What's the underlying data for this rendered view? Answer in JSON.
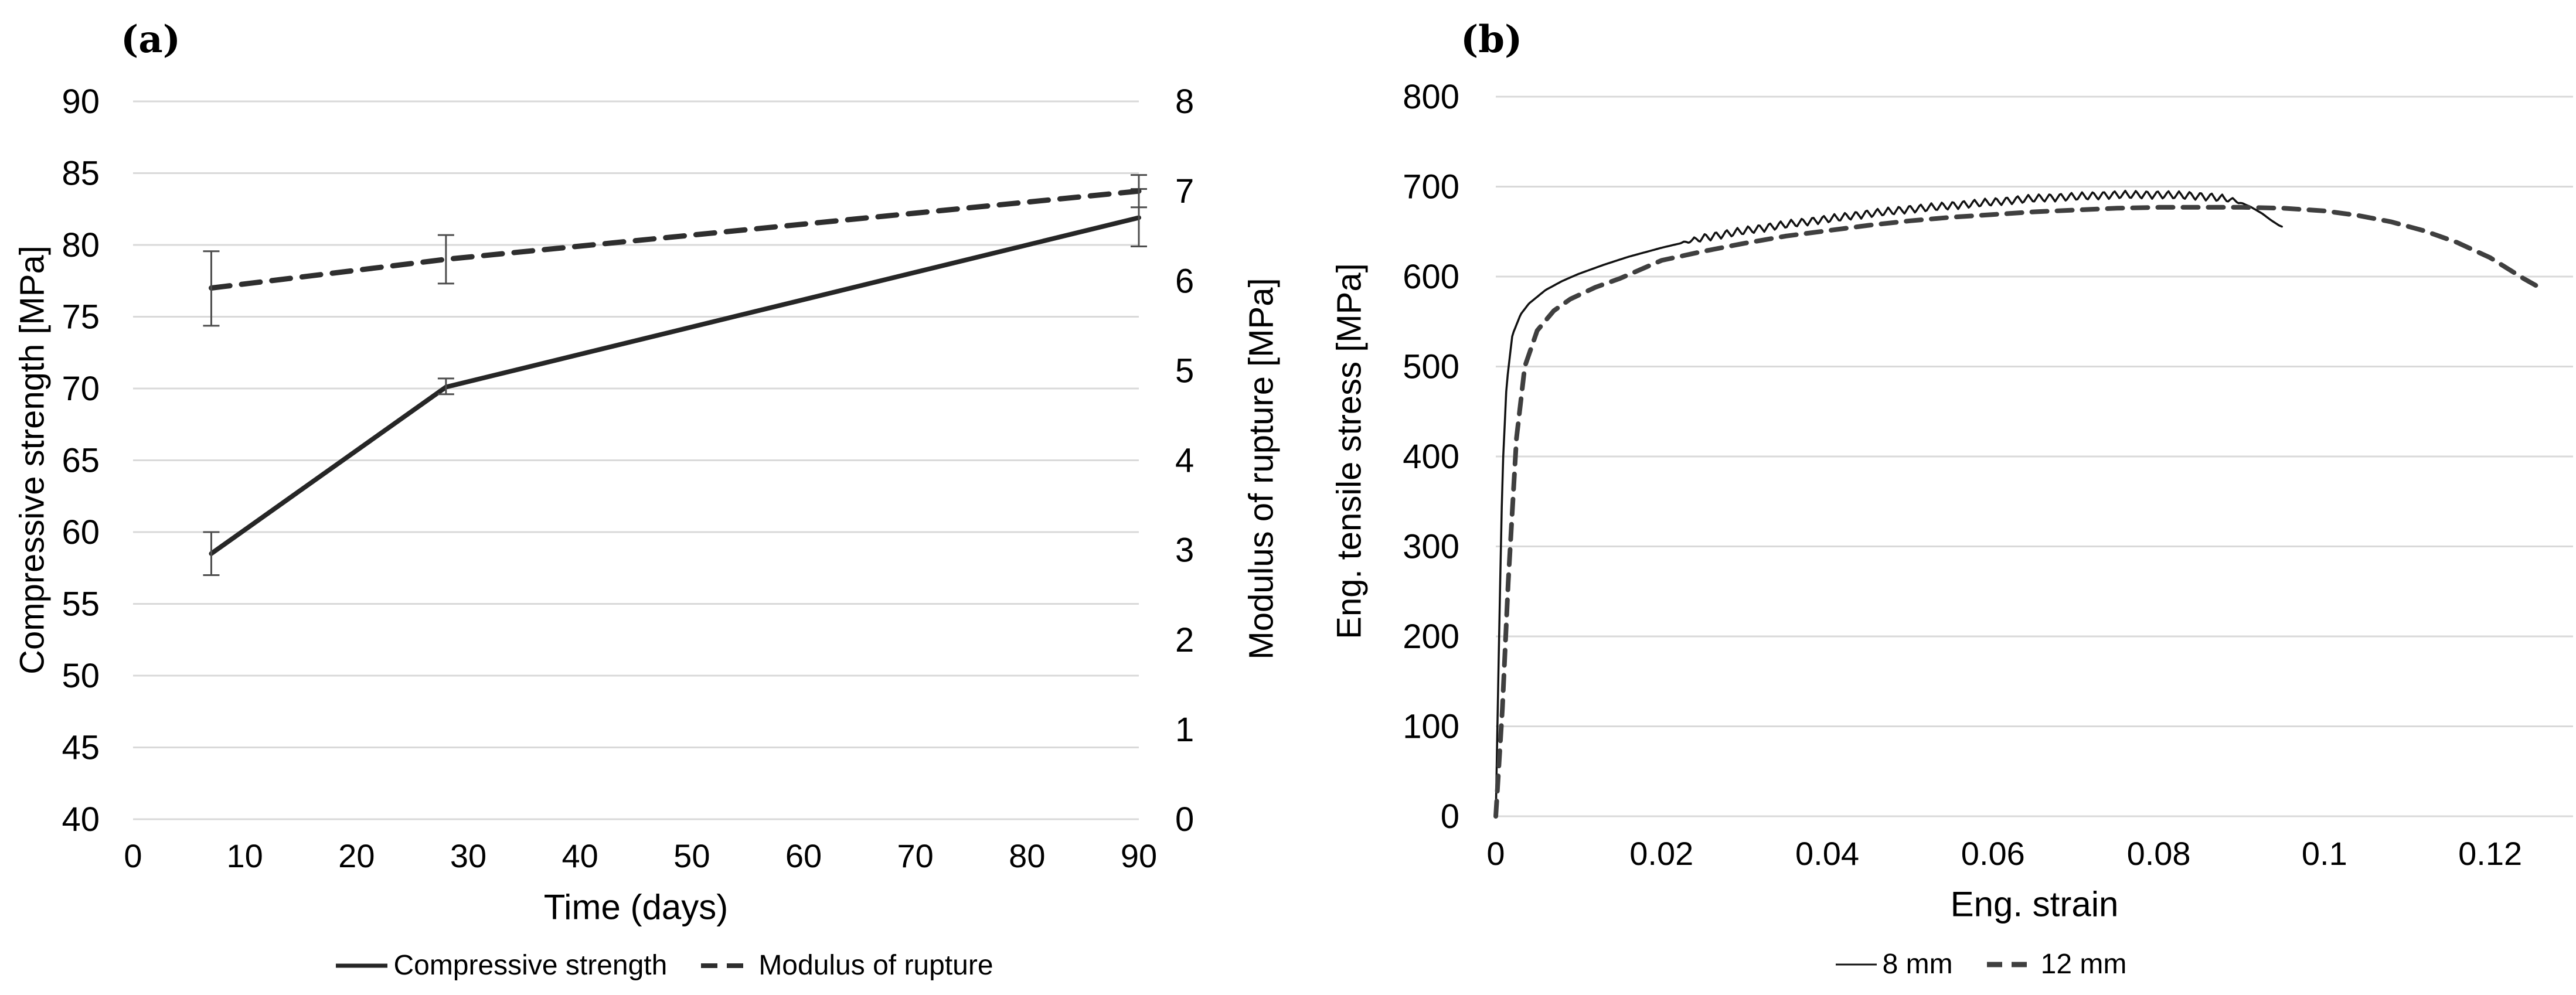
{
  "figure": {
    "background": "#ffffff",
    "text_color": "#000000",
    "grid_color": "#d9d9d9",
    "error_bar_color": "#4d4d4d"
  },
  "chart_data": [
    {
      "type": "line",
      "panel_label": "(a)",
      "xlabel": "Time (days)",
      "ylabel_left": "Compressive strength [MPa]",
      "ylabel_right": "Modulus of rupture [MPa]",
      "xlim": [
        0,
        90
      ],
      "xticks": [
        0,
        10,
        20,
        30,
        40,
        50,
        60,
        70,
        80,
        90
      ],
      "xtick_labels": [
        "0",
        "10",
        "20",
        "30",
        "40",
        "50",
        "60",
        "70",
        "80",
        "90"
      ],
      "ylim_left": [
        40,
        90
      ],
      "yticks_left": [
        90,
        85,
        80,
        75,
        70,
        65,
        60,
        55,
        50,
        45,
        40
      ],
      "ylim_right": [
        0,
        8
      ],
      "yticks_right": [
        8,
        7,
        6,
        5,
        4,
        3,
        2,
        1,
        0
      ],
      "grid": "horizontal",
      "legend_position": "bottom",
      "series": [
        {
          "name": "Compressive strength",
          "axis": "left",
          "style": "solid",
          "color": "#262626",
          "line_width": 8,
          "x": [
            7,
            28,
            90
          ],
          "y": [
            58.5,
            70.1,
            81.9
          ],
          "y_err": [
            [
              57.0,
              60.0
            ],
            [
              69.6,
              70.7
            ],
            [
              79.9,
              83.9
            ]
          ]
        },
        {
          "name": "Modulus of rupture",
          "axis": "right",
          "style": "dashed",
          "color": "#2e2e2e",
          "line_width": 9,
          "x": [
            7,
            28,
            90
          ],
          "y": [
            5.92,
            6.24,
            7.0
          ],
          "y_err": [
            [
              5.5,
              6.33
            ],
            [
              5.97,
              6.51
            ],
            [
              6.82,
              7.18
            ]
          ]
        }
      ]
    },
    {
      "type": "line",
      "panel_label": "(b)",
      "xlabel": "Eng. strain",
      "ylabel": "Eng. tensile stress [MPa]",
      "xlim": [
        0,
        0.13
      ],
      "xticks": [
        0,
        0.02,
        0.04,
        0.06,
        0.08,
        0.1,
        0.12
      ],
      "xtick_labels": [
        "0",
        "0.02",
        "0.04",
        "0.06",
        "0.08",
        "0.1",
        "0.12"
      ],
      "ylim": [
        0,
        800
      ],
      "yticks": [
        800,
        700,
        600,
        500,
        400,
        300,
        200,
        100,
        0
      ],
      "grid": "horizontal",
      "legend_position": "bottom",
      "series": [
        {
          "name": "8 mm",
          "style": "solid",
          "color": "#111111",
          "line_width": 3.5,
          "points": [
            [
              0,
              0
            ],
            [
              0.0004,
              200
            ],
            [
              0.0008,
              380
            ],
            [
              0.0013,
              480
            ],
            [
              0.002,
              535
            ],
            [
              0.003,
              558
            ],
            [
              0.004,
              570
            ],
            [
              0.006,
              585
            ],
            [
              0.008,
              595
            ],
            [
              0.01,
              603
            ],
            [
              0.013,
              613
            ],
            [
              0.016,
              622
            ],
            [
              0.02,
              632
            ],
            [
              0.025,
              643
            ],
            [
              0.03,
              651
            ],
            [
              0.035,
              658
            ],
            [
              0.04,
              664
            ],
            [
              0.045,
              670
            ],
            [
              0.05,
              675
            ],
            [
              0.055,
              679
            ],
            [
              0.06,
              683
            ],
            [
              0.065,
              687
            ],
            [
              0.07,
              689
            ],
            [
              0.075,
              691
            ],
            [
              0.08,
              691
            ],
            [
              0.084,
              690
            ],
            [
              0.087,
              688
            ],
            [
              0.089,
              685
            ],
            [
              0.091,
              678
            ],
            [
              0.0925,
              670
            ],
            [
              0.0935,
              663
            ],
            [
              0.0945,
              657
            ],
            [
              0.095,
              655
            ]
          ],
          "serration": {
            "from": 0.022,
            "to": 0.0905,
            "amplitude": 4.5,
            "period": 0.0013
          }
        },
        {
          "name": "12 mm",
          "style": "dashed",
          "color": "#3f3f3f",
          "line_width": 8,
          "points": [
            [
              0,
              0
            ],
            [
              0.0008,
              120
            ],
            [
              0.0015,
              260
            ],
            [
              0.0025,
              420
            ],
            [
              0.0035,
              500
            ],
            [
              0.005,
              540
            ],
            [
              0.007,
              562
            ],
            [
              0.009,
              575
            ],
            [
              0.012,
              588
            ],
            [
              0.015,
              598
            ],
            [
              0.02,
              618
            ],
            [
              0.025,
              628
            ],
            [
              0.03,
              637
            ],
            [
              0.035,
              645
            ],
            [
              0.04,
              651
            ],
            [
              0.045,
              657
            ],
            [
              0.05,
              662
            ],
            [
              0.055,
              666
            ],
            [
              0.06,
              669
            ],
            [
              0.065,
              672
            ],
            [
              0.07,
              674
            ],
            [
              0.075,
              676
            ],
            [
              0.08,
              677
            ],
            [
              0.085,
              677
            ],
            [
              0.09,
              677
            ],
            [
              0.095,
              676
            ],
            [
              0.1,
              673
            ],
            [
              0.104,
              668
            ],
            [
              0.108,
              661
            ],
            [
              0.112,
              651
            ],
            [
              0.116,
              638
            ],
            [
              0.12,
              621
            ],
            [
              0.124,
              598
            ],
            [
              0.1265,
              585
            ]
          ]
        }
      ]
    }
  ]
}
